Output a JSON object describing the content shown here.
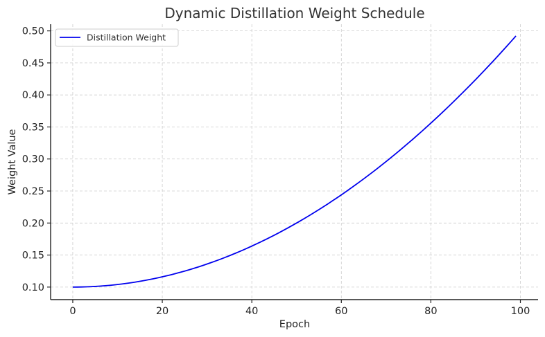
{
  "chart_data": {
    "type": "line",
    "title": "Dynamic Distillation Weight Schedule",
    "xlabel": "Epoch",
    "ylabel": "Weight Value",
    "xlim": [
      -4.95,
      103.95
    ],
    "ylim": [
      0.0804,
      0.5104
    ],
    "x_ticks": [
      0,
      20,
      40,
      60,
      80,
      100
    ],
    "x_tick_labels": [
      "0",
      "20",
      "40",
      "60",
      "80",
      "100"
    ],
    "y_ticks": [
      0.1,
      0.15,
      0.2,
      0.25,
      0.3,
      0.35,
      0.4,
      0.45,
      0.5
    ],
    "y_tick_labels": [
      "0.10",
      "0.15",
      "0.20",
      "0.25",
      "0.30",
      "0.35",
      "0.40",
      "0.45",
      "0.50"
    ],
    "grid": true,
    "legend_position": "top-left",
    "series": [
      {
        "name": "Distillation Weight",
        "color": "#0000ee",
        "x_start": 0,
        "x_end": 99,
        "formula": "0.1 + 0.4 * (epoch/100)^2",
        "sample_points": {
          "x": [
            0,
            20,
            40,
            60,
            80,
            99
          ],
          "y": [
            0.1,
            0.116,
            0.164,
            0.244,
            0.356,
            0.492
          ]
        }
      }
    ]
  }
}
